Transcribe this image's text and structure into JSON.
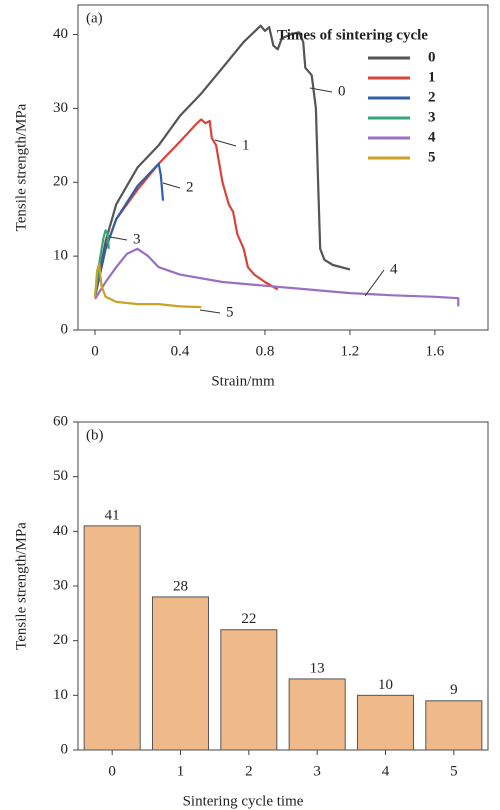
{
  "chart_data": [
    {
      "type": "line",
      "panel_label": "(a)",
      "xlabel": "Strain/mm",
      "ylabel": "Tensile strength/MPa",
      "legend_title": "Times of sintering cycle",
      "legend": "top-right",
      "xlim": [
        -0.08,
        1.85
      ],
      "xticks": [
        0,
        0.4,
        0.8,
        1.2,
        1.6
      ],
      "ylim": [
        0,
        44
      ],
      "yticks": [
        0,
        10,
        20,
        30,
        40
      ],
      "series": [
        {
          "name": "0",
          "color": "#555555",
          "x": [
            0,
            0.05,
            0.1,
            0.2,
            0.3,
            0.4,
            0.5,
            0.6,
            0.7,
            0.78,
            0.8,
            0.82,
            0.84,
            0.86,
            0.88,
            0.92,
            0.96,
            0.98,
            0.99,
            1.02,
            1.04,
            1.05,
            1.06,
            1.08,
            1.12,
            1.2
          ],
          "values": [
            4.5,
            12,
            17,
            22,
            25,
            29,
            32,
            35.5,
            39,
            41.2,
            40.5,
            41,
            38.5,
            38,
            39.5,
            40,
            40.3,
            39,
            35.5,
            34.5,
            30,
            20,
            11,
            9.5,
            8.8,
            8.2
          ]
        },
        {
          "name": "1",
          "color": "#d9433a",
          "x": [
            0,
            0.05,
            0.1,
            0.2,
            0.3,
            0.4,
            0.48,
            0.5,
            0.52,
            0.54,
            0.55,
            0.57,
            0.6,
            0.63,
            0.65,
            0.67,
            0.7,
            0.72,
            0.75,
            0.8,
            0.86
          ],
          "values": [
            4.5,
            11,
            15,
            19,
            22.5,
            25.5,
            28,
            28.5,
            28,
            28.3,
            26,
            25,
            20,
            17,
            16,
            13,
            11,
            8.5,
            7.5,
            6.5,
            5.5
          ]
        },
        {
          "name": "2",
          "color": "#2e5fa8",
          "x": [
            0,
            0.05,
            0.1,
            0.2,
            0.3,
            0.31,
            0.32
          ],
          "values": [
            4.5,
            11,
            15,
            19.5,
            22.5,
            21,
            17.5
          ]
        },
        {
          "name": "3",
          "color": "#3aa37a",
          "x": [
            0,
            0.02,
            0.04,
            0.05,
            0.06,
            0.065
          ],
          "values": [
            4.5,
            9,
            12.5,
            13.5,
            13,
            11
          ]
        },
        {
          "name": "4",
          "color": "#9b6fc0",
          "x": [
            0,
            0.05,
            0.1,
            0.15,
            0.2,
            0.25,
            0.3,
            0.4,
            0.6,
            0.8,
            1.0,
            1.2,
            1.4,
            1.6,
            1.71,
            1.71
          ],
          "values": [
            4.2,
            6.5,
            8.5,
            10.3,
            11,
            10,
            8.5,
            7.5,
            6.5,
            6,
            5.5,
            5,
            4.7,
            4.5,
            4.3,
            3.2
          ]
        },
        {
          "name": "5",
          "color": "#c9a227",
          "x": [
            0,
            0.01,
            0.02,
            0.03,
            0.05,
            0.1,
            0.2,
            0.3,
            0.4,
            0.5
          ],
          "values": [
            4.5,
            8,
            9,
            6,
            4.5,
            3.8,
            3.5,
            3.5,
            3.2,
            3.1
          ]
        }
      ]
    },
    {
      "type": "bar",
      "panel_label": "(b)",
      "xlabel": "Sintering cycle time",
      "ylabel": "Tensile strength/MPa",
      "categories": [
        "0",
        "1",
        "2",
        "3",
        "4",
        "5"
      ],
      "values": [
        41,
        28,
        22,
        13,
        10,
        9
      ],
      "color": "#f0b98a",
      "ylim": [
        0,
        60
      ],
      "yticks": [
        0,
        10,
        20,
        30,
        40,
        50,
        60
      ]
    }
  ]
}
